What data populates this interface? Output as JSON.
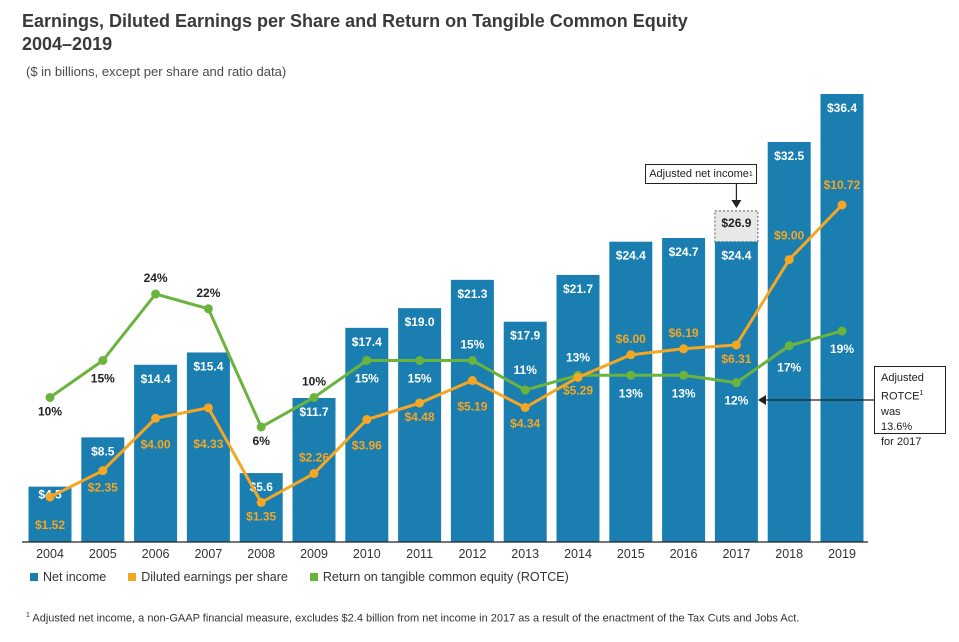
{
  "title_line1": "Earnings, Diluted Earnings per Share and Return on Tangible Common Equity",
  "title_line2": "2004–2019",
  "subtitle": "($ in billions, except per share and ratio data)",
  "colors": {
    "bar": "#1a7fb0",
    "eps": "#f5a623",
    "rotce": "#6ab43e",
    "adjusted_bar": "#e8e8e8"
  },
  "chart_data": {
    "type": "bar",
    "categories": [
      "2004",
      "2005",
      "2006",
      "2007",
      "2008",
      "2009",
      "2010",
      "2011",
      "2012",
      "2013",
      "2014",
      "2015",
      "2016",
      "2017",
      "2018",
      "2019"
    ],
    "series": [
      {
        "name": "Net income",
        "type": "bar",
        "values": [
          4.5,
          8.5,
          14.4,
          15.4,
          5.6,
          11.7,
          17.4,
          19.0,
          21.3,
          17.9,
          21.7,
          24.4,
          24.7,
          24.4,
          32.5,
          36.4
        ],
        "labels": [
          "$4.5",
          "$8.5",
          "$14.4",
          "$15.4",
          "$5.6",
          "$11.7",
          "$17.4",
          "$19.0",
          "$21.3",
          "$17.9",
          "$21.7",
          "$24.4",
          "$24.7",
          "$24.4",
          "$32.5",
          "$36.4"
        ]
      },
      {
        "name": "Diluted earnings per share",
        "type": "line",
        "values": [
          1.52,
          2.35,
          4.0,
          4.33,
          1.35,
          2.26,
          3.96,
          4.48,
          5.19,
          4.34,
          5.29,
          6.0,
          6.19,
          6.31,
          9.0,
          10.72
        ],
        "labels": [
          "$1.52",
          "$2.35",
          "$4.00",
          "$4.33",
          "$1.35",
          "$2.26",
          "$3.96",
          "$4.48",
          "$5.19",
          "$4.34",
          "$5.29",
          "$6.00",
          "$6.19",
          "$6.31",
          "$9.00",
          "$10.72"
        ]
      },
      {
        "name": "Return on tangible common equity (ROTCE)",
        "type": "line",
        "values": [
          10,
          15,
          24,
          22,
          6,
          10,
          15,
          15,
          15,
          11,
          13,
          13,
          13,
          12,
          17,
          19
        ],
        "labels": [
          "10%",
          "15%",
          "24%",
          "22%",
          "6%",
          "10%",
          "15%",
          "15%",
          "15%",
          "11%",
          "13%",
          "13%",
          "13%",
          "12%",
          "17%",
          "19%"
        ]
      }
    ],
    "adjusted_net_income_2017": {
      "value": 26.9,
      "label": "$26.9"
    },
    "ylim_net_income": [
      0,
      36.4
    ],
    "legend_position": "bottom-left"
  },
  "callouts": {
    "adjusted_net_income": "Adjusted net income",
    "adjusted_net_income_sup": "1",
    "rotce_line1": "Adjusted",
    "rotce_line2": "ROTCE",
    "rotce_sup": "1",
    "rotce_line2_rest": " was",
    "rotce_line3": "13.6%",
    "rotce_line4": "for 2017"
  },
  "legend": {
    "net_income": "Net income",
    "eps": "Diluted earnings per share",
    "rotce": "Return on tangible common equity (ROTCE)"
  },
  "footnote_sup": "1",
  "footnote": "Adjusted net income, a non-GAAP financial measure, excludes $2.4 billion from net income in 2017 as a result of the enactment of the Tax Cuts and Jobs Act."
}
